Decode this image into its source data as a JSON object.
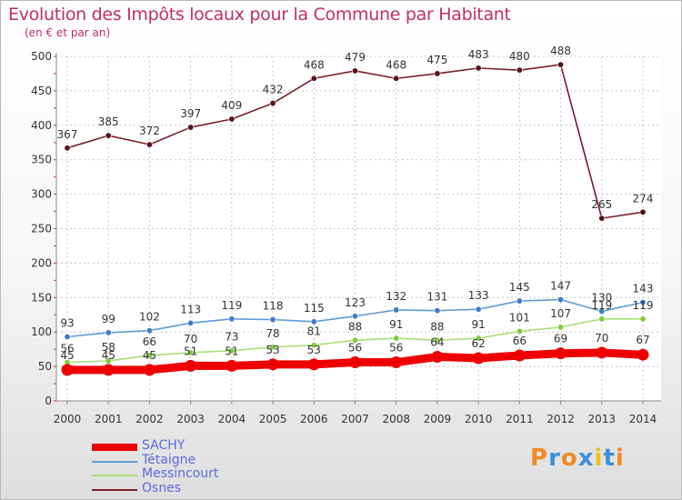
{
  "title": "Evolution des Impôts locaux pour la Commune par Habitant",
  "subtitle": "(en € et par an)",
  "logo": "Proxiti",
  "colors": {
    "title": "#c0305a",
    "axis_text": "#333333",
    "grid": "#c8c8c8",
    "legend_text": "#5a6adc"
  },
  "chart_data": {
    "type": "line",
    "title": "Evolution des Impôts locaux pour la Commune par Habitant",
    "subtitle": "(en € et par an)",
    "xlabel": "",
    "ylabel": "",
    "x": [
      "2000",
      "2001",
      "2002",
      "2003",
      "2004",
      "2005",
      "2006",
      "2007",
      "2008",
      "2009",
      "2010",
      "2011",
      "2012",
      "2013",
      "2014"
    ],
    "ylim": [
      0,
      500
    ],
    "yticks": [
      0,
      50,
      100,
      150,
      200,
      250,
      300,
      350,
      400,
      450,
      500
    ],
    "grid": true,
    "legend_position": "bottom-left",
    "series": [
      {
        "name": "SACHY",
        "color": "#ee0000",
        "marker": "#ee0000",
        "emphasis": true,
        "values": [
          45,
          45,
          45,
          51,
          51,
          53,
          53,
          56,
          56,
          64,
          62,
          66,
          69,
          70,
          67
        ]
      },
      {
        "name": "Tétaigne",
        "color": "#5e9bd3",
        "marker": "#3d7cc5",
        "values": [
          93,
          99,
          102,
          113,
          119,
          118,
          115,
          123,
          132,
          131,
          133,
          145,
          147,
          130,
          143
        ]
      },
      {
        "name": "Messincourt",
        "color": "#a8e078",
        "marker": "#7ccc3c",
        "values": [
          56,
          58,
          66,
          70,
          73,
          78,
          81,
          88,
          91,
          88,
          91,
          101,
          107,
          119,
          119
        ]
      },
      {
        "name": "Osnes",
        "color": "#7a1e28",
        "marker": "#5a1018",
        "values": [
          367,
          385,
          372,
          397,
          409,
          432,
          468,
          479,
          468,
          475,
          483,
          480,
          488,
          265,
          274
        ]
      }
    ]
  }
}
